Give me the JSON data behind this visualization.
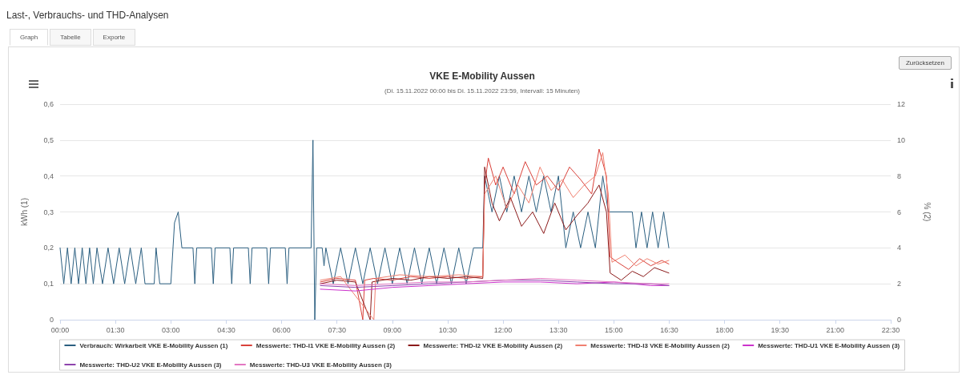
{
  "chart_data": {
    "type": "line",
    "title": "VKE E-Mobility Aussen",
    "subtitle": "(Di. 15.11.2022 00:00 bis Di. 15.11.2022 23:59, Intervall: 15 Minuten)",
    "annotations": [
      "Last-, Verbrauchs- und THD-Analysen",
      "Graph",
      "Tabelle",
      "Exporte",
      "Zurücksetzen"
    ],
    "ylabel": "kWh (1)",
    "y2label": "% (2)",
    "xlim": [
      0,
      22.5
    ],
    "xticks": [
      {
        "value": 0,
        "label": "00:00"
      },
      {
        "value": 1.5,
        "label": "01:30"
      },
      {
        "value": 3,
        "label": "03:00"
      },
      {
        "value": 4.5,
        "label": "04:30"
      },
      {
        "value": 6,
        "label": "06:00"
      },
      {
        "value": 7.5,
        "label": "07:30"
      },
      {
        "value": 9,
        "label": "09:00"
      },
      {
        "value": 10.5,
        "label": "10:30"
      },
      {
        "value": 12,
        "label": "12:00"
      },
      {
        "value": 13.5,
        "label": "13:30"
      },
      {
        "value": 15,
        "label": "15:00"
      },
      {
        "value": 16.5,
        "label": "16:30"
      },
      {
        "value": 18,
        "label": "18:00"
      },
      {
        "value": 19.5,
        "label": "19:30"
      },
      {
        "value": 21,
        "label": "21:00"
      },
      {
        "value": 22.5,
        "label": "22:30"
      }
    ],
    "ylim": [
      0,
      0.6
    ],
    "yticks": [
      0,
      {
        "value": 0.1,
        "label": "0,1"
      },
      {
        "value": 0.2,
        "label": "0,2"
      },
      {
        "value": 0.3,
        "label": "0,3"
      },
      {
        "value": 0.4,
        "label": "0,4"
      },
      {
        "value": 0.5,
        "label": "0,5"
      },
      {
        "value": 0.6,
        "label": "0,6"
      }
    ],
    "y2lim": [
      0,
      12
    ],
    "y2ticks": [
      0,
      2,
      4,
      6,
      8,
      10,
      12
    ],
    "grid": "y",
    "legend": "bottom",
    "marker": "none",
    "line_style": "solid",
    "series": [
      {
        "name": "Verbrauch: Wirkarbeit VKE E-Mobility Aussen (1)",
        "color": "#2b5f80",
        "x": [
          0,
          0.1,
          0.2,
          0.3,
          0.4,
          0.5,
          0.6,
          0.7,
          0.8,
          0.9,
          1.0,
          1.15,
          1.3,
          1.45,
          1.6,
          1.75,
          1.9,
          2.05,
          2.2,
          2.3,
          2.55,
          2.6,
          2.7,
          3.0,
          3.1,
          3.2,
          3.3,
          3.6,
          3.65,
          3.7,
          4.1,
          4.15,
          4.2,
          4.6,
          4.65,
          4.7,
          5.1,
          5.15,
          5.2,
          5.6,
          5.65,
          5.7,
          6.1,
          6.15,
          6.2,
          6.8,
          6.85,
          6.9,
          6.95,
          7.1,
          7.15,
          7.2,
          7.4,
          7.6,
          7.8,
          8.0,
          8.2,
          8.4,
          8.6,
          8.8,
          9.0,
          9.2,
          9.4,
          9.6,
          9.8,
          10.0,
          10.2,
          10.4,
          10.6,
          10.8,
          11.0,
          11.2,
          11.45,
          11.5,
          11.7,
          11.9,
          12.1,
          12.3,
          12.5,
          12.7,
          12.9,
          13.1,
          13.3,
          13.5,
          13.7,
          13.9,
          14.1,
          14.3,
          14.5,
          14.7,
          14.85,
          15.5,
          15.6,
          15.75,
          15.9,
          16.05,
          16.2,
          16.35,
          16.49
        ],
        "values": [
          0.2,
          0.1,
          0.2,
          0.1,
          0.2,
          0.1,
          0.2,
          0.1,
          0.2,
          0.1,
          0.2,
          0.1,
          0.2,
          0.1,
          0.2,
          0.1,
          0.2,
          0.1,
          0.2,
          0.1,
          0.1,
          0.2,
          0.1,
          0.1,
          0.27,
          0.3,
          0.2,
          0.2,
          0.1,
          0.2,
          0.2,
          0.1,
          0.2,
          0.2,
          0.1,
          0.2,
          0.2,
          0.1,
          0.2,
          0.2,
          0.1,
          0.2,
          0.2,
          0.1,
          0.2,
          0.2,
          0.5,
          0.0,
          0.2,
          0.2,
          0.15,
          0.2,
          0.1,
          0.2,
          0.1,
          0.2,
          0.1,
          0.2,
          0.1,
          0.2,
          0.1,
          0.2,
          0.1,
          0.2,
          0.1,
          0.2,
          0.1,
          0.2,
          0.1,
          0.2,
          0.1,
          0.2,
          0.2,
          0.4,
          0.3,
          0.4,
          0.3,
          0.4,
          0.3,
          0.4,
          0.3,
          0.4,
          0.3,
          0.4,
          0.2,
          0.3,
          0.2,
          0.3,
          0.2,
          0.4,
          0.3,
          0.3,
          0.2,
          0.3,
          0.2,
          0.3,
          0.2,
          0.3,
          0.2
        ]
      },
      {
        "name": "Messwerte: THD-I1 VKE E-Mobility Aussen (2)",
        "color": "#d9413a",
        "axis": "y2",
        "x": [
          7.05,
          7.5,
          8.0,
          8.2,
          8.25,
          8.5,
          9.0,
          9.5,
          10.0,
          10.5,
          11.0,
          11.45,
          11.5,
          11.6,
          11.8,
          12.0,
          12.3,
          12.6,
          12.9,
          13.2,
          13.5,
          13.8,
          14.1,
          14.4,
          14.6,
          14.8,
          14.9,
          15.1,
          15.4,
          15.7,
          16.0,
          16.3,
          16.49
        ],
        "values": [
          2.1,
          2.3,
          2.2,
          0,
          2.2,
          2.3,
          2.2,
          2.4,
          2.3,
          2.4,
          2.3,
          2.4,
          7.5,
          9.0,
          7.5,
          8.5,
          7.0,
          8.8,
          7.5,
          8.0,
          7.2,
          8.5,
          7.8,
          7.0,
          9.5,
          8.0,
          3.5,
          3.2,
          2.8,
          3.4,
          3.0,
          3.3,
          3.1
        ]
      },
      {
        "name": "Messwerte: THD-I2 VKE E-Mobility Aussen (2)",
        "color": "#8b1a1a",
        "axis": "y2",
        "x": [
          7.05,
          7.5,
          8.0,
          8.4,
          8.45,
          9.0,
          9.5,
          10.0,
          10.5,
          11.0,
          11.45,
          11.5,
          11.7,
          11.9,
          12.2,
          12.5,
          12.8,
          13.1,
          13.4,
          13.7,
          14.0,
          14.3,
          14.6,
          14.8,
          14.9,
          15.2,
          15.5,
          15.8,
          16.1,
          16.49
        ],
        "values": [
          2.0,
          2.2,
          2.1,
          0,
          2.1,
          2.3,
          2.2,
          2.4,
          2.3,
          2.4,
          2.3,
          8.5,
          6.5,
          5.5,
          6.8,
          5.2,
          6.0,
          4.8,
          6.5,
          5.0,
          5.8,
          6.5,
          7.5,
          6.0,
          2.6,
          2.2,
          2.7,
          2.4,
          2.9,
          2.6
        ]
      },
      {
        "name": "Messwerte: THD-I3 VKE E-Mobility Aussen (2)",
        "color": "#f08070",
        "axis": "y2",
        "x": [
          7.05,
          7.6,
          8.5,
          8.55,
          9.2,
          10.0,
          10.8,
          11.45,
          11.5,
          11.8,
          12.1,
          12.4,
          12.7,
          13.0,
          13.3,
          13.6,
          13.9,
          14.2,
          14.5,
          14.7,
          14.85,
          14.95,
          15.3,
          15.6,
          15.9,
          16.2,
          16.49
        ],
        "values": [
          2.2,
          2.4,
          0,
          2.3,
          2.5,
          2.4,
          2.5,
          2.4,
          7.0,
          8.0,
          6.2,
          7.5,
          6.5,
          8.5,
          7.2,
          7.8,
          6.8,
          7.5,
          8.0,
          9.3,
          7.0,
          3.2,
          3.6,
          3.0,
          3.4,
          3.1,
          3.3
        ]
      },
      {
        "name": "Messwerte: THD-U1 VKE E-Mobility Aussen (3)",
        "color": "#cc33cc",
        "axis": "y2",
        "x": [
          7.05,
          8,
          9,
          10,
          11,
          12,
          13,
          14,
          15,
          16,
          16.49
        ],
        "values": [
          1.7,
          1.6,
          1.8,
          1.9,
          2.0,
          2.1,
          2.1,
          2.0,
          2.1,
          1.9,
          1.9
        ]
      },
      {
        "name": "Messwerte: THD-U2 VKE E-Mobility Aussen (3)",
        "color": "#8e44ad",
        "axis": "y2",
        "x": [
          7.05,
          8,
          9,
          10,
          11,
          12,
          13,
          14,
          15,
          16,
          16.49
        ],
        "values": [
          1.9,
          1.8,
          1.9,
          2.0,
          2.1,
          2.2,
          2.2,
          2.1,
          2.0,
          2.0,
          1.9
        ]
      },
      {
        "name": "Messwerte: THD-U3 VKE E-Mobility Aussen (3)",
        "color": "#e377c2",
        "axis": "y2",
        "x": [
          7.05,
          8,
          9,
          10,
          11,
          12,
          13,
          14,
          15,
          16,
          16.49
        ],
        "values": [
          2.0,
          1.9,
          2.0,
          2.1,
          2.1,
          2.2,
          2.3,
          2.2,
          2.1,
          2.0,
          2.0
        ]
      }
    ]
  }
}
